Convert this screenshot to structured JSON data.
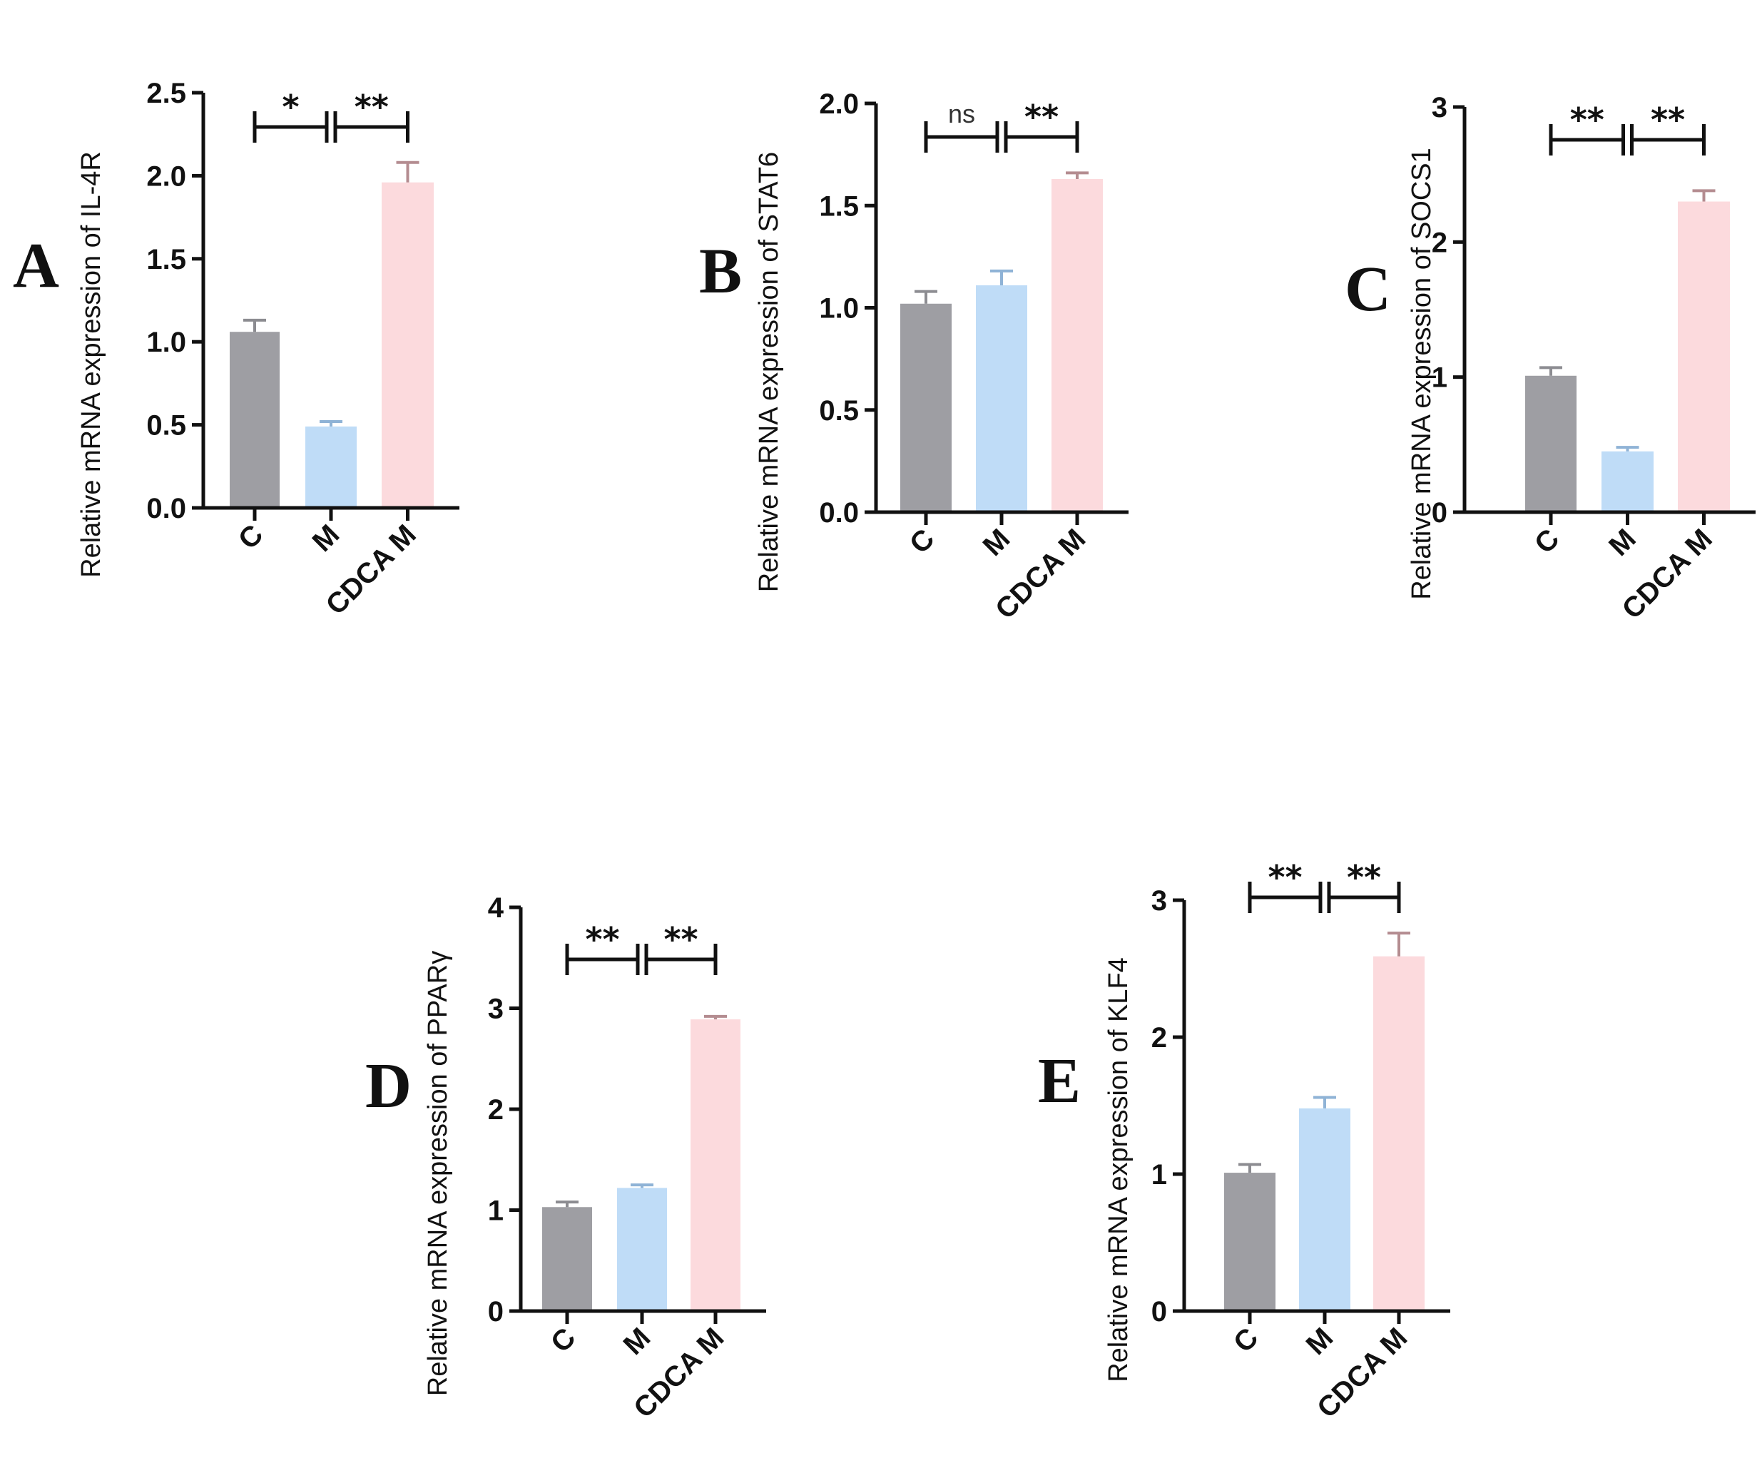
{
  "chart_data": [
    {
      "panel": "A",
      "type": "bar",
      "ylabel": "Relative mRNA expression of IL-4R",
      "categories": [
        "C",
        "M",
        "CDCA M"
      ],
      "values": [
        1.06,
        0.49,
        1.96
      ],
      "errors": [
        0.07,
        0.03,
        0.12
      ],
      "ylim": [
        0,
        2.5
      ],
      "yticks": [
        "0.0",
        "0.5",
        "1.0",
        "1.5",
        "2.0",
        "2.5"
      ],
      "significance": [
        {
          "from": 0,
          "to": 1,
          "label": "*"
        },
        {
          "from": 1,
          "to": 2,
          "label": "**"
        }
      ]
    },
    {
      "panel": "B",
      "type": "bar",
      "ylabel": "Relative mRNA expression of STAT6",
      "categories": [
        "C",
        "M",
        "CDCA M"
      ],
      "values": [
        1.02,
        1.11,
        1.63
      ],
      "errors": [
        0.06,
        0.07,
        0.03
      ],
      "ylim": [
        0,
        2.0
      ],
      "yticks": [
        "0.0",
        "0.5",
        "1.0",
        "1.5",
        "2.0"
      ],
      "significance": [
        {
          "from": 0,
          "to": 1,
          "label": "ns"
        },
        {
          "from": 1,
          "to": 2,
          "label": "**"
        }
      ]
    },
    {
      "panel": "C",
      "type": "bar",
      "ylabel": "Relative mRNA expression of SOCS1",
      "categories": [
        "C",
        "M",
        "CDCA M"
      ],
      "values": [
        1.01,
        0.45,
        2.3
      ],
      "errors": [
        0.06,
        0.03,
        0.08
      ],
      "ylim": [
        0,
        3
      ],
      "yticks": [
        "0",
        "1",
        "2",
        "3"
      ],
      "significance": [
        {
          "from": 0,
          "to": 1,
          "label": "**"
        },
        {
          "from": 1,
          "to": 2,
          "label": "**"
        }
      ]
    },
    {
      "panel": "D",
      "type": "bar",
      "ylabel": "Relative mRNA expression of PPARγ",
      "categories": [
        "C",
        "M",
        "CDCA M"
      ],
      "values": [
        1.03,
        1.22,
        2.89
      ],
      "errors": [
        0.05,
        0.03,
        0.03
      ],
      "ylim": [
        0,
        4
      ],
      "yticks": [
        "0",
        "1",
        "2",
        "3",
        "4"
      ],
      "significance": [
        {
          "from": 0,
          "to": 1,
          "label": "**"
        },
        {
          "from": 1,
          "to": 2,
          "label": "**"
        }
      ]
    },
    {
      "panel": "E",
      "type": "bar",
      "ylabel": "Relative mRNA expression of KLF4",
      "categories": [
        "C",
        "M",
        "CDCA M"
      ],
      "values": [
        1.01,
        1.48,
        2.59
      ],
      "errors": [
        0.06,
        0.08,
        0.17
      ],
      "ylim": [
        0,
        3
      ],
      "yticks": [
        "0",
        "1",
        "2",
        "3"
      ],
      "significance": [
        {
          "from": 0,
          "to": 1,
          "label": "**"
        },
        {
          "from": 1,
          "to": 2,
          "label": "**"
        }
      ]
    }
  ],
  "colors": {
    "bars": [
      "#9e9ea3",
      "#bfdcf7",
      "#fcdadd"
    ],
    "errors": [
      "#8c8c91",
      "#8fb3d6",
      "#b48c90"
    ]
  }
}
